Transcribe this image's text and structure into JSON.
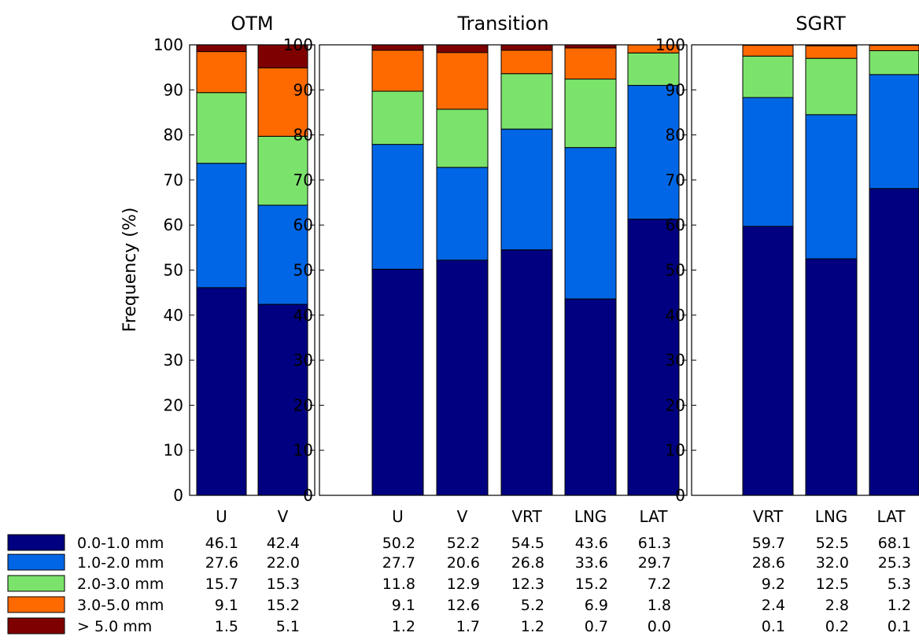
{
  "chart_data": {
    "type": "bar",
    "stacked": true,
    "ylabel": "Frequency (%)",
    "ylim": [
      0,
      100
    ],
    "yticks": [
      "0",
      "10",
      "20",
      "30",
      "40",
      "50",
      "60",
      "70",
      "80",
      "90",
      "100"
    ],
    "legend": [
      {
        "name": "0.0-1.0 mm",
        "color": "#000080"
      },
      {
        "name": "1.0-2.0 mm",
        "color": "#0066e6"
      },
      {
        "name": "2.0-3.0 mm",
        "color": "#7be36b"
      },
      {
        "name": "3.0-5.0 mm",
        "color": "#ff6a00"
      },
      {
        "name": "> 5.0 mm",
        "color": "#7f0000"
      }
    ],
    "panels": [
      {
        "title": "OTM",
        "categories": [
          "U",
          "V"
        ],
        "series": [
          {
            "name": "0.0-1.0 mm",
            "values": [
              46.1,
              42.4
            ]
          },
          {
            "name": "1.0-2.0 mm",
            "values": [
              27.6,
              22.0
            ]
          },
          {
            "name": "2.0-3.0 mm",
            "values": [
              15.7,
              15.3
            ]
          },
          {
            "name": "3.0-5.0 mm",
            "values": [
              9.1,
              15.2
            ]
          },
          {
            "name": "> 5.0 mm",
            "values": [
              1.5,
              5.1
            ]
          }
        ],
        "value_labels": [
          [
            "46.1",
            "42.4"
          ],
          [
            "27.6",
            "22.0"
          ],
          [
            "15.7",
            "15.3"
          ],
          [
            "9.1",
            "15.2"
          ],
          [
            "1.5",
            "5.1"
          ]
        ]
      },
      {
        "title": "Transition",
        "categories": [
          "U",
          "V",
          "VRT",
          "LNG",
          "LAT"
        ],
        "series": [
          {
            "name": "0.0-1.0 mm",
            "values": [
              50.2,
              52.2,
              54.5,
              43.6,
              61.3
            ]
          },
          {
            "name": "1.0-2.0 mm",
            "values": [
              27.7,
              20.6,
              26.8,
              33.6,
              29.7
            ]
          },
          {
            "name": "2.0-3.0 mm",
            "values": [
              11.8,
              12.9,
              12.3,
              15.2,
              7.2
            ]
          },
          {
            "name": "3.0-5.0 mm",
            "values": [
              9.1,
              12.6,
              5.2,
              6.9,
              1.8
            ]
          },
          {
            "name": "> 5.0 mm",
            "values": [
              1.2,
              1.7,
              1.2,
              0.7,
              0.0
            ]
          }
        ],
        "value_labels": [
          [
            "50.2",
            "52.2",
            "54.5",
            "43.6",
            "61.3"
          ],
          [
            "27.7",
            "20.6",
            "26.8",
            "33.6",
            "29.7"
          ],
          [
            "11.8",
            "12.9",
            "12.3",
            "15.2",
            "7.2"
          ],
          [
            "9.1",
            "12.6",
            "5.2",
            "6.9",
            "1.8"
          ],
          [
            "1.2",
            "1.7",
            "1.2",
            "0.7",
            "0.0"
          ]
        ]
      },
      {
        "title": "SGRT",
        "categories": [
          "VRT",
          "LNG",
          "LAT"
        ],
        "series": [
          {
            "name": "0.0-1.0 mm",
            "values": [
              59.7,
              52.5,
              68.1
            ]
          },
          {
            "name": "1.0-2.0 mm",
            "values": [
              28.6,
              32.0,
              25.3
            ]
          },
          {
            "name": "2.0-3.0 mm",
            "values": [
              9.2,
              12.5,
              5.3
            ]
          },
          {
            "name": "3.0-5.0 mm",
            "values": [
              2.4,
              2.8,
              1.2
            ]
          },
          {
            "name": "> 5.0 mm",
            "values": [
              0.1,
              0.2,
              0.1
            ]
          }
        ],
        "value_labels": [
          [
            "59.7",
            "52.5",
            "68.1"
          ],
          [
            "28.6",
            "32.0",
            "25.3"
          ],
          [
            "9.2",
            "12.5",
            "5.3"
          ],
          [
            "2.4",
            "2.8",
            "1.2"
          ],
          [
            "0.1",
            "0.2",
            "0.1"
          ]
        ]
      }
    ]
  }
}
